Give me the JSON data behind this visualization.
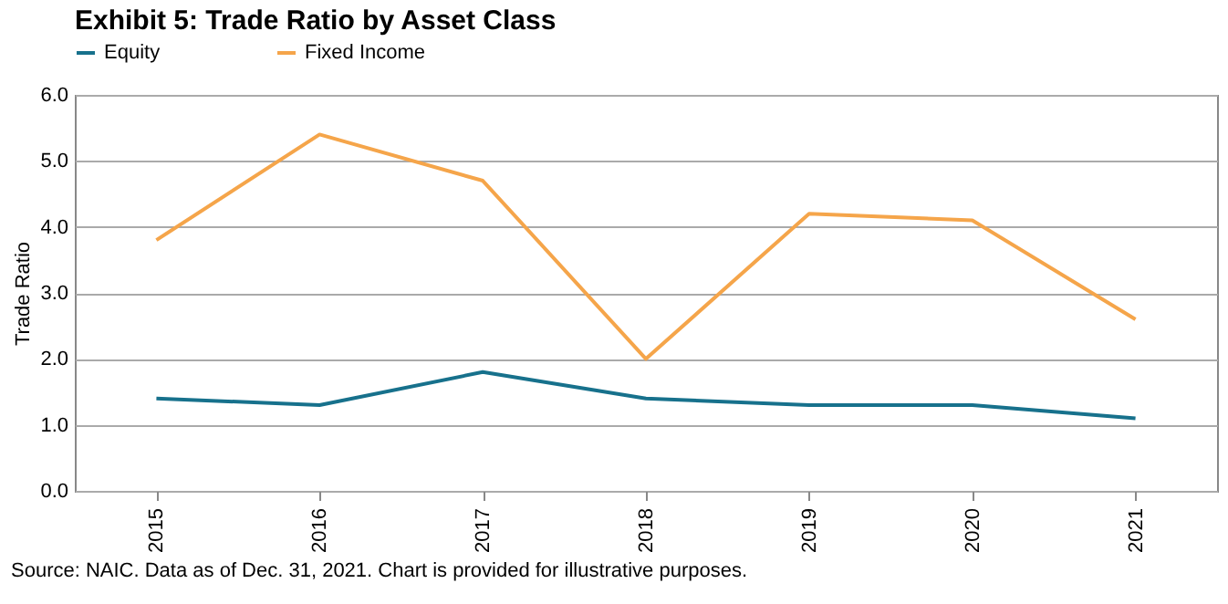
{
  "chart_data": {
    "type": "line",
    "title": "Exhibit 5: Trade Ratio by Asset Class",
    "ylabel": "Trade Ratio",
    "categories": [
      "2015",
      "2016",
      "2017",
      "2018",
      "2019",
      "2020",
      "2021"
    ],
    "series": [
      {
        "name": "Equity",
        "color": "#17718c",
        "values": [
          1.4,
          1.3,
          1.8,
          1.4,
          1.3,
          1.3,
          1.1
        ]
      },
      {
        "name": "Fixed Income",
        "color": "#f5a54a",
        "values": [
          3.8,
          5.4,
          4.7,
          2.0,
          4.2,
          4.1,
          2.6
        ]
      }
    ],
    "ylim": [
      0,
      6
    ],
    "yticks": [
      {
        "value": 0,
        "label": "0.0"
      },
      {
        "value": 1,
        "label": "1.0"
      },
      {
        "value": 2,
        "label": "2.0"
      },
      {
        "value": 3,
        "label": "3.0"
      },
      {
        "value": 4,
        "label": "4.0"
      },
      {
        "value": 5,
        "label": "5.0"
      },
      {
        "value": 6,
        "label": "6.0"
      }
    ],
    "grid": "y",
    "legend": "top",
    "marker": "none",
    "line_style": "solid",
    "annotations": [
      "Source: NAIC. Data as of Dec. 31, 2021. Chart is provided for illustrative purposes."
    ]
  }
}
